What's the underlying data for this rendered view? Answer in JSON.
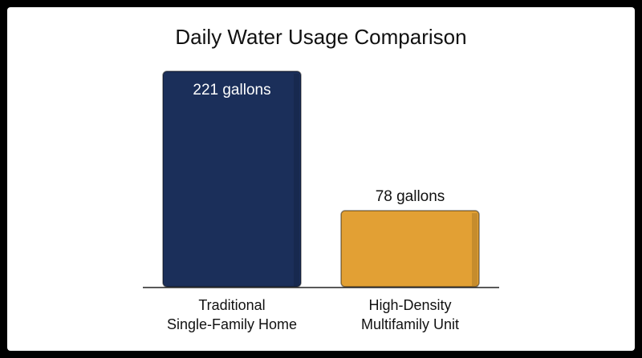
{
  "chart_data": {
    "type": "bar",
    "title": "Daily Water Usage Comparison",
    "categories": [
      [
        "Traditional",
        "Single-Family Home"
      ],
      [
        "High-Density",
        "Multifamily Unit"
      ]
    ],
    "values": [
      221,
      78
    ],
    "value_labels": [
      "221 gallons",
      "78 gallons"
    ],
    "colors": [
      "#1b2f5a",
      "#e2a034"
    ]
  }
}
